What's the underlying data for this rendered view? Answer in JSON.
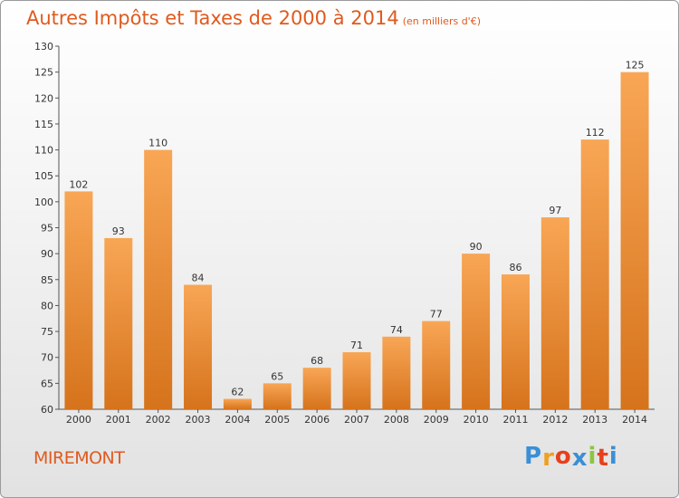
{
  "chart_data": {
    "type": "bar",
    "title": "Autres Impôts et Taxes de 2000 à 2014",
    "unit": "(en milliers d'€)",
    "categories": [
      "2000",
      "2001",
      "2002",
      "2003",
      "2004",
      "2005",
      "2006",
      "2007",
      "2008",
      "2009",
      "2010",
      "2011",
      "2012",
      "2013",
      "2014"
    ],
    "values": [
      102,
      93,
      110,
      84,
      62,
      65,
      68,
      71,
      74,
      77,
      90,
      86,
      97,
      112,
      125
    ],
    "ylim": [
      60,
      130
    ],
    "yticks": [
      60,
      65,
      70,
      75,
      80,
      85,
      90,
      95,
      100,
      105,
      110,
      115,
      120,
      125,
      130
    ],
    "grid": false,
    "bar_color_top": "#f8a655",
    "bar_color_bottom": "#d6731c"
  },
  "footer": {
    "commune": "MIREMONT",
    "logo_letters": [
      "P",
      "r",
      "o",
      "x",
      "i",
      "t",
      "i"
    ],
    "logo_colors": [
      "#3a8fd6",
      "#f0a020",
      "#e8401c",
      "#3a8fd6",
      "#8cc63f",
      "#e8401c",
      "#3a8fd6"
    ]
  }
}
